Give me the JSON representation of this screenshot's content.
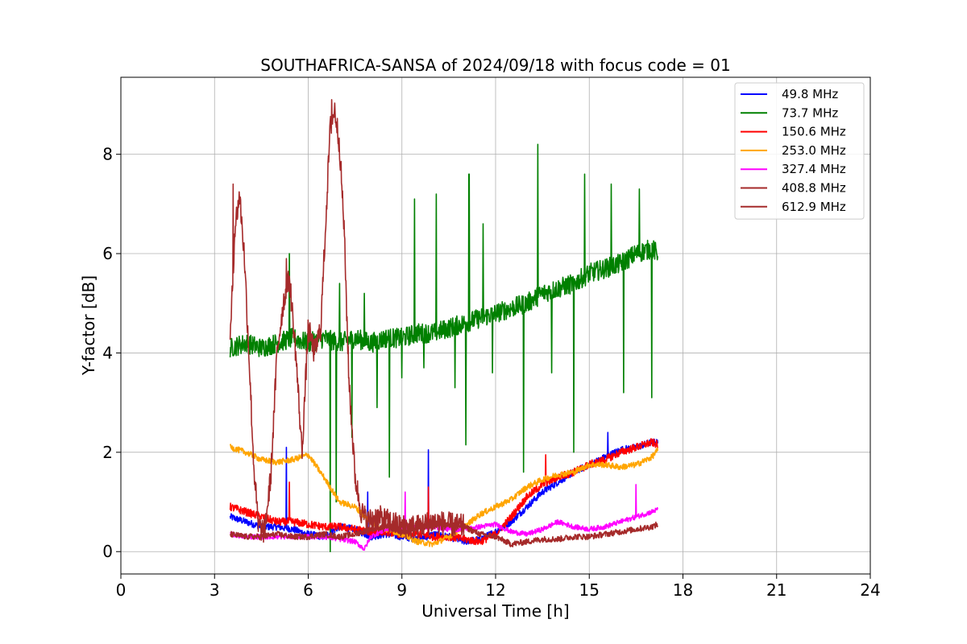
{
  "chart_data": {
    "type": "line",
    "title": "SOUTHAFRICA-SANSA of 2024/09/18 with focus code = 01",
    "xlabel": "Universal Time [h]",
    "ylabel": "Y-factor [dB]",
    "xlim": [
      0,
      24
    ],
    "ylim": [
      -0.45,
      9.55
    ],
    "xticks": [
      0,
      3,
      6,
      9,
      12,
      15,
      18,
      21,
      24
    ],
    "yticks": [
      0,
      2,
      4,
      6,
      8
    ],
    "xtick_labels": [
      "0",
      "3",
      "6",
      "9",
      "12",
      "15",
      "18",
      "21",
      "24"
    ],
    "ytick_labels": [
      "0",
      "2",
      "4",
      "6",
      "8"
    ],
    "grid": true,
    "legend_position": "top-right",
    "series": [
      {
        "name": " 49.8 MHz",
        "color": "#0000ff",
        "noise": 0.07,
        "x": [
          3.5,
          4.0,
          4.5,
          5.0,
          5.5,
          6.0,
          6.5,
          7.0,
          7.5,
          8.0,
          8.5,
          9.0,
          9.5,
          9.8,
          10.0,
          10.5,
          11.0,
          11.5,
          12.0,
          12.5,
          13.0,
          13.5,
          14.0,
          14.5,
          15.0,
          15.5,
          16.0,
          16.5,
          17.0,
          17.2
        ],
        "y": [
          0.7,
          0.6,
          0.5,
          0.5,
          0.45,
          0.35,
          0.3,
          0.5,
          0.45,
          0.3,
          0.35,
          0.3,
          0.25,
          0.3,
          0.35,
          0.3,
          0.2,
          0.25,
          0.4,
          0.6,
          0.9,
          1.2,
          1.4,
          1.6,
          1.75,
          1.9,
          2.05,
          2.1,
          2.2,
          2.2
        ],
        "spikes": [
          {
            "x": 5.3,
            "y": 2.1
          },
          {
            "x": 9.85,
            "y": 2.05
          },
          {
            "x": 7.9,
            "y": 1.2
          },
          {
            "x": 15.6,
            "y": 2.4
          }
        ]
      },
      {
        "name": " 73.7 MHz",
        "color": "#008000",
        "noise": 0.2,
        "x": [
          3.5,
          4.0,
          4.5,
          5.0,
          5.5,
          6.0,
          6.5,
          7.0,
          7.5,
          8.0,
          8.5,
          9.0,
          9.5,
          10.0,
          10.5,
          11.0,
          11.5,
          12.0,
          12.5,
          13.0,
          13.5,
          14.0,
          14.5,
          15.0,
          15.5,
          16.0,
          16.5,
          17.0,
          17.2
        ],
        "y": [
          4.1,
          4.2,
          4.1,
          4.2,
          4.3,
          4.2,
          4.3,
          4.2,
          4.3,
          4.2,
          4.3,
          4.3,
          4.4,
          4.4,
          4.5,
          4.6,
          4.7,
          4.8,
          4.9,
          5.0,
          5.2,
          5.3,
          5.4,
          5.6,
          5.7,
          5.8,
          6.0,
          6.1,
          6.0
        ],
        "spikes": [
          {
            "x": 5.4,
            "y": 6.0
          },
          {
            "x": 6.7,
            "y": 0.0
          },
          {
            "x": 7.0,
            "y": 5.4
          },
          {
            "x": 6.9,
            "y": 1.0
          },
          {
            "x": 7.4,
            "y": 2.3
          },
          {
            "x": 7.8,
            "y": 5.2
          },
          {
            "x": 8.2,
            "y": 2.9
          },
          {
            "x": 8.6,
            "y": 1.5
          },
          {
            "x": 9.0,
            "y": 3.5
          },
          {
            "x": 9.4,
            "y": 7.1
          },
          {
            "x": 9.7,
            "y": 3.7
          },
          {
            "x": 10.1,
            "y": 7.2
          },
          {
            "x": 10.7,
            "y": 3.3
          },
          {
            "x": 11.05,
            "y": 2.15
          },
          {
            "x": 11.15,
            "y": 7.6
          },
          {
            "x": 11.6,
            "y": 6.6
          },
          {
            "x": 11.9,
            "y": 3.6
          },
          {
            "x": 12.9,
            "y": 1.6
          },
          {
            "x": 13.35,
            "y": 8.2
          },
          {
            "x": 13.8,
            "y": 3.6
          },
          {
            "x": 14.5,
            "y": 2.0
          },
          {
            "x": 14.85,
            "y": 7.6
          },
          {
            "x": 15.7,
            "y": 7.4
          },
          {
            "x": 16.1,
            "y": 3.2
          },
          {
            "x": 16.6,
            "y": 7.3
          },
          {
            "x": 17.0,
            "y": 3.1
          }
        ]
      },
      {
        "name": " 150.6 MHz",
        "color": "#ff0000",
        "noise": 0.08,
        "x": [
          3.5,
          4.0,
          4.5,
          5.0,
          5.5,
          6.0,
          6.5,
          7.0,
          7.5,
          8.0,
          8.5,
          9.0,
          9.5,
          10.0,
          10.5,
          11.0,
          11.5,
          12.0,
          12.5,
          13.0,
          13.5,
          14.0,
          14.5,
          15.0,
          15.5,
          16.0,
          16.5,
          17.0,
          17.2
        ],
        "y": [
          0.9,
          0.8,
          0.7,
          0.6,
          0.6,
          0.55,
          0.5,
          0.5,
          0.45,
          0.4,
          0.4,
          0.35,
          0.35,
          0.3,
          0.3,
          0.25,
          0.2,
          0.35,
          0.7,
          1.1,
          1.35,
          1.5,
          1.6,
          1.75,
          1.85,
          2.0,
          2.1,
          2.2,
          2.15
        ],
        "spikes": [
          {
            "x": 5.4,
            "y": 1.4
          },
          {
            "x": 9.85,
            "y": 1.3
          },
          {
            "x": 13.6,
            "y": 1.95
          }
        ]
      },
      {
        "name": " 253.0 MHz",
        "color": "#ffa500",
        "noise": 0.06,
        "x": [
          3.5,
          4.0,
          4.5,
          5.0,
          5.5,
          6.0,
          6.5,
          7.0,
          7.5,
          8.0,
          8.5,
          9.0,
          9.5,
          10.0,
          10.5,
          11.0,
          11.5,
          12.0,
          12.5,
          13.0,
          13.5,
          14.0,
          14.5,
          15.0,
          15.5,
          16.0,
          16.5,
          17.0,
          17.2
        ],
        "y": [
          2.1,
          2.0,
          1.85,
          1.8,
          1.85,
          1.95,
          1.5,
          1.0,
          0.9,
          0.6,
          0.45,
          0.35,
          0.2,
          0.15,
          0.3,
          0.5,
          0.75,
          0.9,
          1.05,
          1.3,
          1.45,
          1.55,
          1.6,
          1.75,
          1.75,
          1.7,
          1.75,
          1.9,
          2.05
        ],
        "spikes": []
      },
      {
        "name": " 327.4 MHz",
        "color": "#ff00ff",
        "noise": 0.05,
        "x": [
          3.5,
          4.0,
          4.5,
          5.0,
          5.5,
          6.0,
          6.5,
          7.0,
          7.5,
          7.8,
          8.0,
          8.5,
          9.0,
          9.5,
          10.0,
          10.5,
          11.0,
          11.5,
          12.0,
          12.5,
          13.0,
          13.5,
          14.0,
          14.5,
          15.0,
          15.5,
          16.0,
          16.5,
          17.0,
          17.2
        ],
        "y": [
          0.35,
          0.3,
          0.3,
          0.3,
          0.3,
          0.3,
          0.3,
          0.25,
          0.2,
          0.05,
          0.3,
          0.45,
          0.5,
          0.5,
          0.5,
          0.45,
          0.45,
          0.5,
          0.55,
          0.4,
          0.35,
          0.45,
          0.6,
          0.5,
          0.45,
          0.5,
          0.6,
          0.7,
          0.8,
          0.85
        ],
        "spikes": [
          {
            "x": 9.1,
            "y": 1.2
          },
          {
            "x": 16.5,
            "y": 1.35
          }
        ]
      },
      {
        "name": " 408.8 MHz",
        "color": "#a52a2a",
        "noise": 0.06,
        "x": [
          3.5,
          4.0,
          4.5,
          5.0,
          5.5,
          6.0,
          6.5,
          7.0,
          7.5,
          8.0,
          8.5,
          9.0,
          9.5,
          10.0,
          10.5,
          11.0,
          11.5,
          12.0,
          12.5,
          13.0,
          13.5,
          14.0,
          14.5,
          15.0,
          15.5,
          16.0,
          16.5,
          17.0,
          17.2
        ],
        "y": [
          0.35,
          0.3,
          0.3,
          0.35,
          0.3,
          0.3,
          0.35,
          0.3,
          0.35,
          0.45,
          0.5,
          0.4,
          0.45,
          0.55,
          0.55,
          0.5,
          0.35,
          0.3,
          0.15,
          0.2,
          0.25,
          0.25,
          0.3,
          0.3,
          0.35,
          0.4,
          0.45,
          0.5,
          0.55
        ],
        "spikes": []
      },
      {
        "name": " 612.9 MHz",
        "color": "#a52a2a",
        "noise": 0.25,
        "x": [
          3.5,
          3.65,
          3.8,
          3.95,
          4.1,
          4.25,
          4.4,
          4.6,
          4.8,
          5.0,
          5.2,
          5.4,
          5.6,
          5.8,
          6.0,
          6.2,
          6.4,
          6.55,
          6.7,
          6.85,
          7.0,
          7.15,
          7.3,
          7.5,
          7.7,
          7.9,
          8.2,
          8.6,
          9.0,
          9.5,
          10.0,
          10.5,
          11.0
        ],
        "y": [
          4.2,
          6.5,
          7.2,
          6.0,
          4.0,
          1.8,
          0.5,
          0.4,
          1.5,
          4.0,
          5.0,
          5.5,
          4.0,
          2.0,
          4.5,
          4.0,
          4.5,
          6.5,
          8.5,
          8.9,
          8.2,
          6.5,
          3.5,
          1.5,
          0.8,
          0.6,
          0.7,
          0.6,
          0.5,
          0.5,
          0.6,
          0.55,
          0.5
        ],
        "spikes": [
          {
            "x": 3.6,
            "y": 7.4
          },
          {
            "x": 6.75,
            "y": 9.1
          },
          {
            "x": 5.3,
            "y": 5.9
          }
        ]
      }
    ]
  }
}
